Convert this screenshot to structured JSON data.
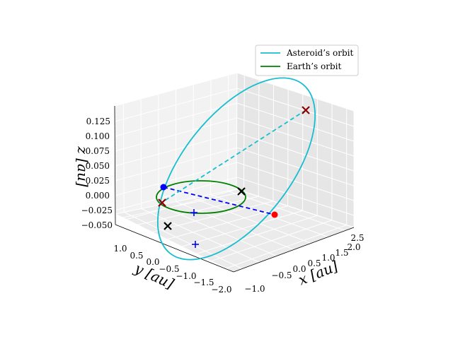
{
  "chart_data": {
    "type": "line",
    "projection": "3d",
    "grid": true,
    "legend_position": "top-right",
    "axes": {
      "x": {
        "label": "x [au]",
        "ticks": [
          "−1.0",
          "−0.5",
          "0.0",
          "0.5",
          "1.0",
          "1.5",
          "2.0",
          "2.5"
        ]
      },
      "y": {
        "label": "y [au]",
        "ticks": [
          "1.0",
          "0.5",
          "0.0",
          "−0.5",
          "−1.0",
          "−1.5",
          "−2.0"
        ]
      },
      "z": {
        "label": "z [au]",
        "ticks": [
          "0.125",
          "0.100",
          "0.075",
          "0.050",
          "0.025",
          "0.000",
          "−0.025",
          "−0.050"
        ]
      }
    },
    "series": [
      {
        "name": "Asteroid’s orbit",
        "color": "#17becf",
        "style": "solid"
      },
      {
        "name": "Earth’s orbit",
        "color": "#008000",
        "style": "solid"
      }
    ],
    "node_lines": [
      {
        "color": "#0000ff",
        "style": "dashed"
      },
      {
        "color": "#17becf",
        "style": "dashed"
      }
    ],
    "markers": [
      {
        "kind": "dot",
        "color": "#0000ff"
      },
      {
        "kind": "dot",
        "color": "#ff0000"
      },
      {
        "kind": "x",
        "color": "#000000"
      },
      {
        "kind": "x",
        "color": "#000000"
      },
      {
        "kind": "x",
        "color": "#8b0000"
      },
      {
        "kind": "x",
        "color": "#8b0000"
      },
      {
        "kind": "plus",
        "color": "#0000ff"
      },
      {
        "kind": "plus",
        "color": "#0000ff"
      }
    ]
  }
}
